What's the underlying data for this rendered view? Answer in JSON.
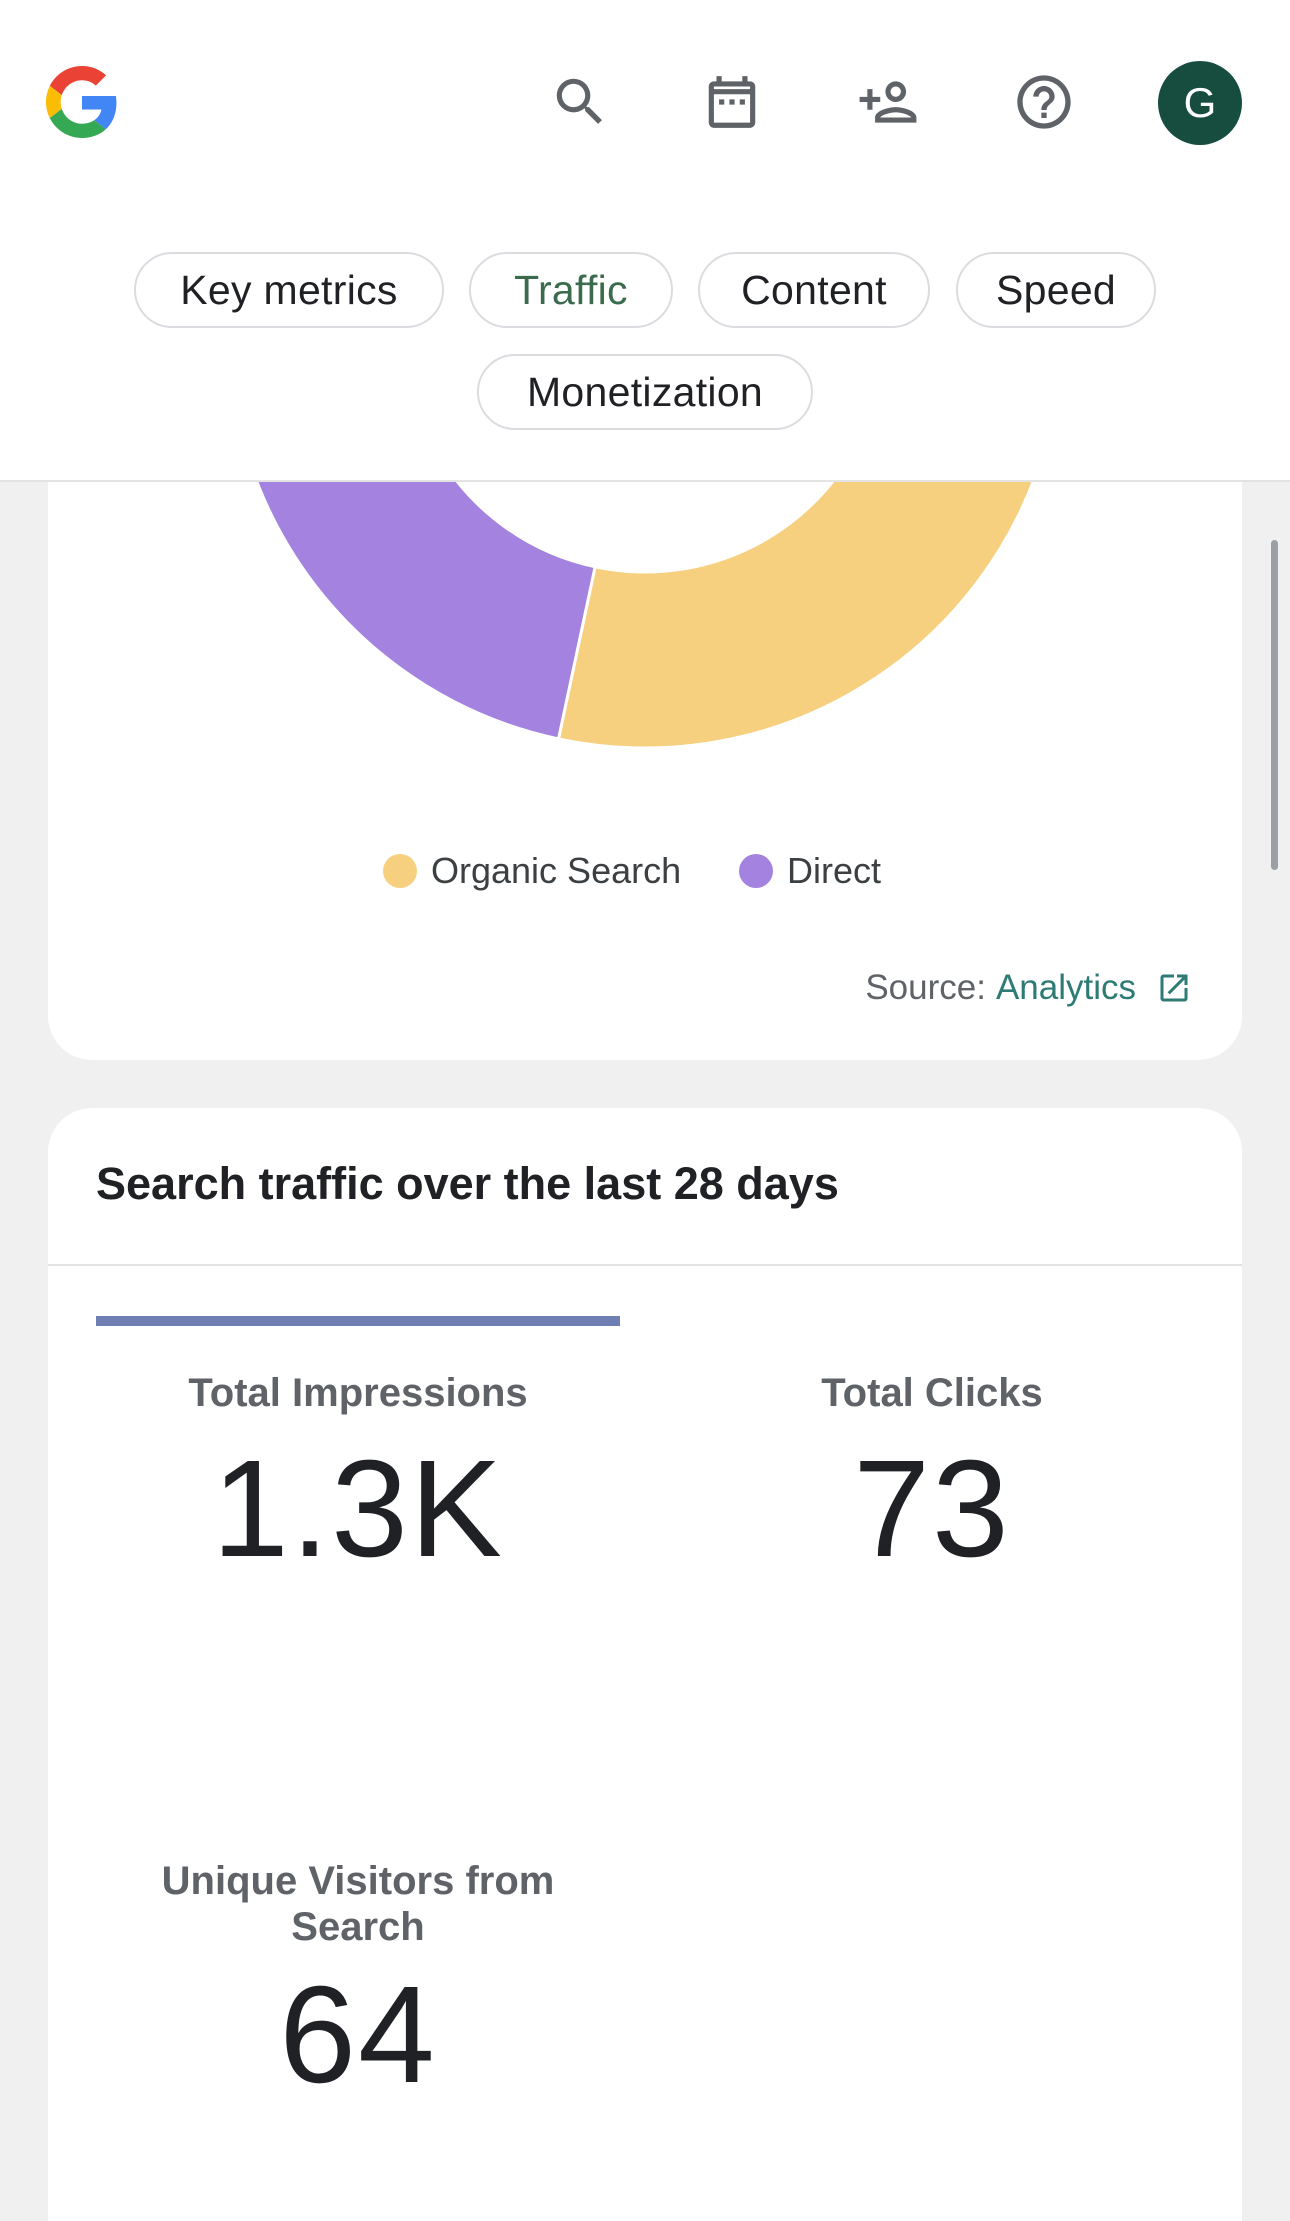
{
  "header": {
    "logo_icon": "google-g-icon",
    "icons": [
      "search-icon",
      "calendar-icon",
      "person-add-icon",
      "help-icon"
    ],
    "avatar_initial": "G",
    "avatar_color": "#174d3f"
  },
  "tabs": [
    {
      "label": "Key metrics",
      "active": false
    },
    {
      "label": "Traffic",
      "active": true
    },
    {
      "label": "Content",
      "active": false
    },
    {
      "label": "Speed",
      "active": false
    },
    {
      "label": "Monetization",
      "active": false
    }
  ],
  "chart_data": {
    "type": "pie",
    "donut": true,
    "series": [
      {
        "name": "Organic Search",
        "color": "#f6cf7f",
        "value": 0.72
      },
      {
        "name": "Direct",
        "color": "#a382e0",
        "value": 0.28
      }
    ],
    "legend_position": "bottom"
  },
  "source": {
    "prefix": "Source:",
    "link_label": "Analytics",
    "link_icon": "open-in-new-icon",
    "link_color": "#2e7b76"
  },
  "search_traffic": {
    "title": "Search traffic over the last 28 days",
    "metrics": [
      {
        "label": "Total Impressions",
        "value": "1.3K"
      },
      {
        "label": "Total Clicks",
        "value": "73"
      },
      {
        "label": "Unique Visitors from Search",
        "value": "64"
      }
    ],
    "accent_color": "#6f7fb3"
  }
}
